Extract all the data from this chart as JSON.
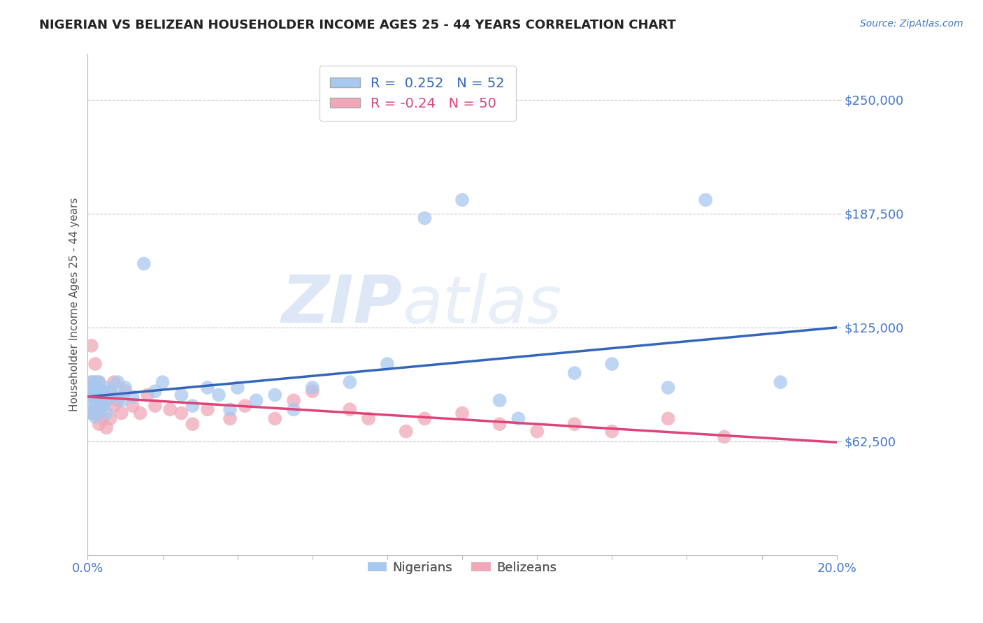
{
  "title": "NIGERIAN VS BELIZEAN HOUSEHOLDER INCOME AGES 25 - 44 YEARS CORRELATION CHART",
  "source_text": "Source: ZipAtlas.com",
  "ylabel": "Householder Income Ages 25 - 44 years",
  "xlim": [
    0.0,
    0.2
  ],
  "ylim": [
    0,
    275000
  ],
  "yticks": [
    62500,
    125000,
    187500,
    250000
  ],
  "ytick_labels": [
    "$62,500",
    "$125,000",
    "$187,500",
    "$250,000"
  ],
  "xticks": [
    0.0,
    0.02,
    0.04,
    0.06,
    0.08,
    0.1,
    0.12,
    0.14,
    0.16,
    0.18,
    0.2
  ],
  "xtick_labels": [
    "0.0%",
    "",
    "",
    "",
    "",
    "",
    "",
    "",
    "",
    "",
    "20.0%"
  ],
  "nigerian_color": "#a8c8f0",
  "belizean_color": "#f0a8b8",
  "nigerian_line_color": "#3366bb",
  "belizean_line_color": "#dd4477",
  "r_nigerian": 0.252,
  "n_nigerian": 52,
  "r_belizean": -0.24,
  "n_belizean": 50,
  "watermark_zip": "ZIP",
  "watermark_atlas": "atlas",
  "background_color": "#ffffff",
  "title_color": "#222222",
  "axis_label_color": "#4477cc",
  "nigerian_x": [
    0.001,
    0.001,
    0.001,
    0.001,
    0.001,
    0.002,
    0.002,
    0.002,
    0.002,
    0.002,
    0.003,
    0.003,
    0.003,
    0.003,
    0.003,
    0.003,
    0.004,
    0.004,
    0.004,
    0.005,
    0.005,
    0.005,
    0.006,
    0.007,
    0.008,
    0.009,
    0.01,
    0.012,
    0.015,
    0.018,
    0.02,
    0.025,
    0.028,
    0.032,
    0.035,
    0.038,
    0.04,
    0.045,
    0.05,
    0.055,
    0.06,
    0.07,
    0.08,
    0.09,
    0.1,
    0.11,
    0.115,
    0.13,
    0.14,
    0.155,
    0.165,
    0.185
  ],
  "nigerian_y": [
    87000,
    92000,
    78000,
    95000,
    82000,
    88000,
    85000,
    90000,
    76000,
    95000,
    87000,
    92000,
    80000,
    85000,
    95000,
    88000,
    82000,
    90000,
    87000,
    85000,
    92000,
    78000,
    90000,
    88000,
    95000,
    85000,
    92000,
    87000,
    160000,
    90000,
    95000,
    88000,
    82000,
    92000,
    88000,
    80000,
    92000,
    85000,
    88000,
    80000,
    92000,
    95000,
    105000,
    185000,
    195000,
    85000,
    75000,
    100000,
    105000,
    92000,
    195000,
    95000
  ],
  "belizean_x": [
    0.001,
    0.001,
    0.001,
    0.001,
    0.002,
    0.002,
    0.002,
    0.002,
    0.002,
    0.003,
    0.003,
    0.003,
    0.003,
    0.003,
    0.004,
    0.004,
    0.004,
    0.005,
    0.005,
    0.006,
    0.006,
    0.007,
    0.007,
    0.008,
    0.009,
    0.01,
    0.012,
    0.014,
    0.016,
    0.018,
    0.022,
    0.025,
    0.028,
    0.032,
    0.038,
    0.042,
    0.05,
    0.055,
    0.06,
    0.07,
    0.075,
    0.085,
    0.09,
    0.1,
    0.11,
    0.12,
    0.13,
    0.14,
    0.155,
    0.17
  ],
  "belizean_y": [
    95000,
    88000,
    115000,
    78000,
    105000,
    92000,
    82000,
    78000,
    95000,
    88000,
    72000,
    85000,
    95000,
    78000,
    90000,
    82000,
    75000,
    85000,
    70000,
    90000,
    75000,
    82000,
    95000,
    85000,
    78000,
    90000,
    82000,
    78000,
    88000,
    82000,
    80000,
    78000,
    72000,
    80000,
    75000,
    82000,
    75000,
    85000,
    90000,
    80000,
    75000,
    68000,
    75000,
    78000,
    72000,
    68000,
    72000,
    68000,
    75000,
    65000
  ]
}
